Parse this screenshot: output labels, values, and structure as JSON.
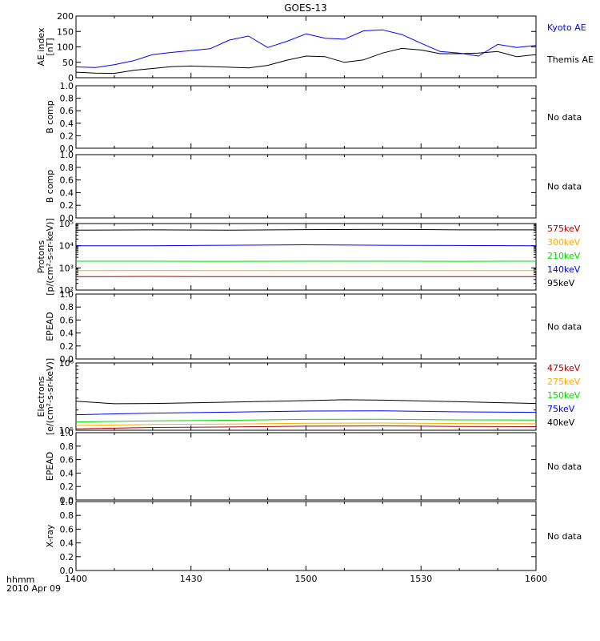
{
  "title": "GOES-13",
  "time_axis": {
    "ticks": [
      "1400",
      "1430",
      "1500",
      "1530",
      "1600"
    ],
    "label_line1": "hhmm",
    "label_line2": "2010 Apr 09"
  },
  "colors": {
    "black": "#000000",
    "blue": "#0000ff",
    "green": "#00dd00",
    "orange": "#ffaa00",
    "darkred": "#aa0000"
  },
  "chart_data": [
    {
      "type": "line",
      "panel": "ae",
      "ylabel_lines": [
        "AE index",
        "[nT]"
      ],
      "ylim": [
        0,
        200
      ],
      "yticks": [
        0,
        50,
        100,
        150,
        200
      ],
      "x_unit": "minutes after 1400 UT",
      "series": [
        {
          "name": "Kyoto AE",
          "color": "#0000ff",
          "x": [
            0,
            5,
            10,
            15,
            20,
            25,
            30,
            35,
            40,
            45,
            50,
            55,
            60,
            65,
            70,
            75,
            80,
            85,
            90,
            95,
            100,
            105,
            110,
            115,
            120
          ],
          "y": [
            35,
            33,
            42,
            55,
            75,
            82,
            88,
            94,
            122,
            135,
            98,
            118,
            142,
            128,
            125,
            152,
            155,
            140,
            112,
            85,
            80,
            70,
            108,
            98,
            105
          ]
        },
        {
          "name": "Themis AE",
          "color": "#000000",
          "x": [
            0,
            5,
            10,
            15,
            20,
            25,
            30,
            35,
            40,
            45,
            50,
            55,
            60,
            65,
            70,
            75,
            80,
            85,
            90,
            95,
            100,
            105,
            110,
            115,
            120
          ],
          "y": [
            18,
            15,
            14,
            24,
            30,
            36,
            38,
            36,
            34,
            32,
            40,
            57,
            70,
            68,
            50,
            58,
            80,
            95,
            90,
            78,
            78,
            80,
            85,
            68,
            75
          ]
        }
      ],
      "legend_order": [
        "Kyoto AE",
        "Themis AE"
      ]
    },
    {
      "type": "line",
      "panel": "nodata",
      "ylabel_lines": [
        "B comp"
      ],
      "ylim": [
        0,
        1
      ],
      "yticks": [
        0,
        0.2,
        0.4,
        0.6,
        0.8,
        1.0
      ],
      "ytick_labels": [
        "0.0",
        "0.2",
        "0.4",
        "0.6",
        "0.8",
        "1.0"
      ],
      "note": "No data"
    },
    {
      "type": "line",
      "panel": "nodata",
      "ylabel_lines": [
        "B comp"
      ],
      "ylim": [
        0,
        1
      ],
      "yticks": [
        0,
        0.2,
        0.4,
        0.6,
        0.8,
        1.0
      ],
      "ytick_labels": [
        "0.0",
        "0.2",
        "0.4",
        "0.6",
        "0.8",
        "1.0"
      ],
      "note": "No data"
    },
    {
      "type": "line",
      "panel": "log",
      "ylabel_lines": [
        "Protons",
        "[p/(cm²-s-sr-keV)]"
      ],
      "ylog": true,
      "ylim": [
        100,
        100000
      ],
      "yticks": [
        100,
        1000,
        10000,
        100000
      ],
      "ytick_labels": [
        "10²",
        "10³",
        "10⁴",
        "10⁵"
      ],
      "series": [
        {
          "name": "575keV",
          "color": "#aa0000",
          "x": [
            0,
            20,
            40,
            60,
            80,
            100,
            120
          ],
          "y": [
            400,
            410,
            400,
            405,
            400,
            400,
            405
          ]
        },
        {
          "name": "300keV",
          "color": "#ffaa00",
          "x": [
            0,
            20,
            40,
            60,
            80,
            100,
            120
          ],
          "y": [
            750,
            760,
            750,
            755,
            750,
            750,
            755
          ]
        },
        {
          "name": "210keV",
          "color": "#00dd00",
          "x": [
            0,
            20,
            40,
            60,
            80,
            100,
            120
          ],
          "y": [
            2000,
            2000,
            1980,
            2000,
            2000,
            1990,
            2000
          ]
        },
        {
          "name": "140keV",
          "color": "#0000ff",
          "x": [
            0,
            20,
            40,
            60,
            80,
            100,
            120
          ],
          "y": [
            10000,
            10000,
            10500,
            11000,
            10500,
            10200,
            10000
          ]
        },
        {
          "name": "95keV",
          "color": "#000000",
          "x": [
            0,
            20,
            40,
            60,
            80,
            100,
            120
          ],
          "y": [
            50000,
            52000,
            50000,
            53000,
            55000,
            52000,
            52000
          ]
        }
      ],
      "legend_order": [
        "575keV",
        "300keV",
        "210keV",
        "140keV",
        "95keV"
      ]
    },
    {
      "type": "line",
      "panel": "nodata",
      "ylabel_lines": [
        "EPEAD"
      ],
      "ylim": [
        0,
        1
      ],
      "yticks": [
        0,
        0.2,
        0.4,
        0.6,
        0.8,
        1.0
      ],
      "ytick_labels": [
        "0.0",
        "0.2",
        "0.4",
        "0.6",
        "0.8",
        "1.0"
      ],
      "note": "No data"
    },
    {
      "type": "line",
      "panel": "log",
      "ylabel_lines": [
        "Electrons",
        "[e/(cm²-s-sr-keV)]"
      ],
      "ylog": true,
      "ylim": [
        100000,
        1000000
      ],
      "yticks": [
        100000,
        1000000
      ],
      "ytick_labels": [
        "10⁵",
        "10⁶"
      ],
      "series": [
        {
          "name": "475keV",
          "color": "#aa0000",
          "x": [
            0,
            20,
            40,
            60,
            80,
            100,
            120
          ],
          "y": [
            105000,
            110000,
            112000,
            115000,
            116000,
            114000,
            113000
          ]
        },
        {
          "name": "275keV",
          "color": "#ffaa00",
          "x": [
            0,
            20,
            40,
            60,
            80,
            100,
            120
          ],
          "y": [
            118000,
            122000,
            124000,
            127000,
            128000,
            126000,
            125000
          ]
        },
        {
          "name": "150keV",
          "color": "#00dd00",
          "x": [
            0,
            20,
            40,
            60,
            80,
            100,
            120
          ],
          "y": [
            133000,
            138000,
            141000,
            145000,
            146000,
            143000,
            142000
          ]
        },
        {
          "name": "75keV",
          "color": "#0000ff",
          "x": [
            0,
            20,
            40,
            60,
            80,
            100,
            120
          ],
          "y": [
            170000,
            180000,
            186000,
            193000,
            194000,
            188000,
            185000
          ]
        },
        {
          "name": "40keV",
          "color": "#000000",
          "x": [
            0,
            10,
            20,
            40,
            60,
            70,
            80,
            100,
            120
          ],
          "y": [
            270000,
            248000,
            250000,
            262000,
            276000,
            284000,
            280000,
            265000,
            250000
          ]
        }
      ],
      "legend_order": [
        "475keV",
        "275keV",
        "150keV",
        "75keV",
        "40keV"
      ]
    },
    {
      "type": "line",
      "panel": "nodata",
      "ylabel_lines": [
        "EPEAD"
      ],
      "ylim": [
        0,
        1
      ],
      "yticks": [
        0,
        0.2,
        0.4,
        0.6,
        0.8,
        1.0
      ],
      "ytick_labels": [
        "0.0",
        "0.2",
        "0.4",
        "0.6",
        "0.8",
        "1.0"
      ],
      "note": "No data"
    },
    {
      "type": "line",
      "panel": "nodata",
      "ylabel_lines": [
        "X-ray"
      ],
      "ylim": [
        0,
        1
      ],
      "yticks": [
        0,
        0.2,
        0.4,
        0.6,
        0.8,
        1.0
      ],
      "ytick_labels": [
        "0.0",
        "0.2",
        "0.4",
        "0.6",
        "0.8",
        "1.0"
      ],
      "note": "No data"
    }
  ]
}
